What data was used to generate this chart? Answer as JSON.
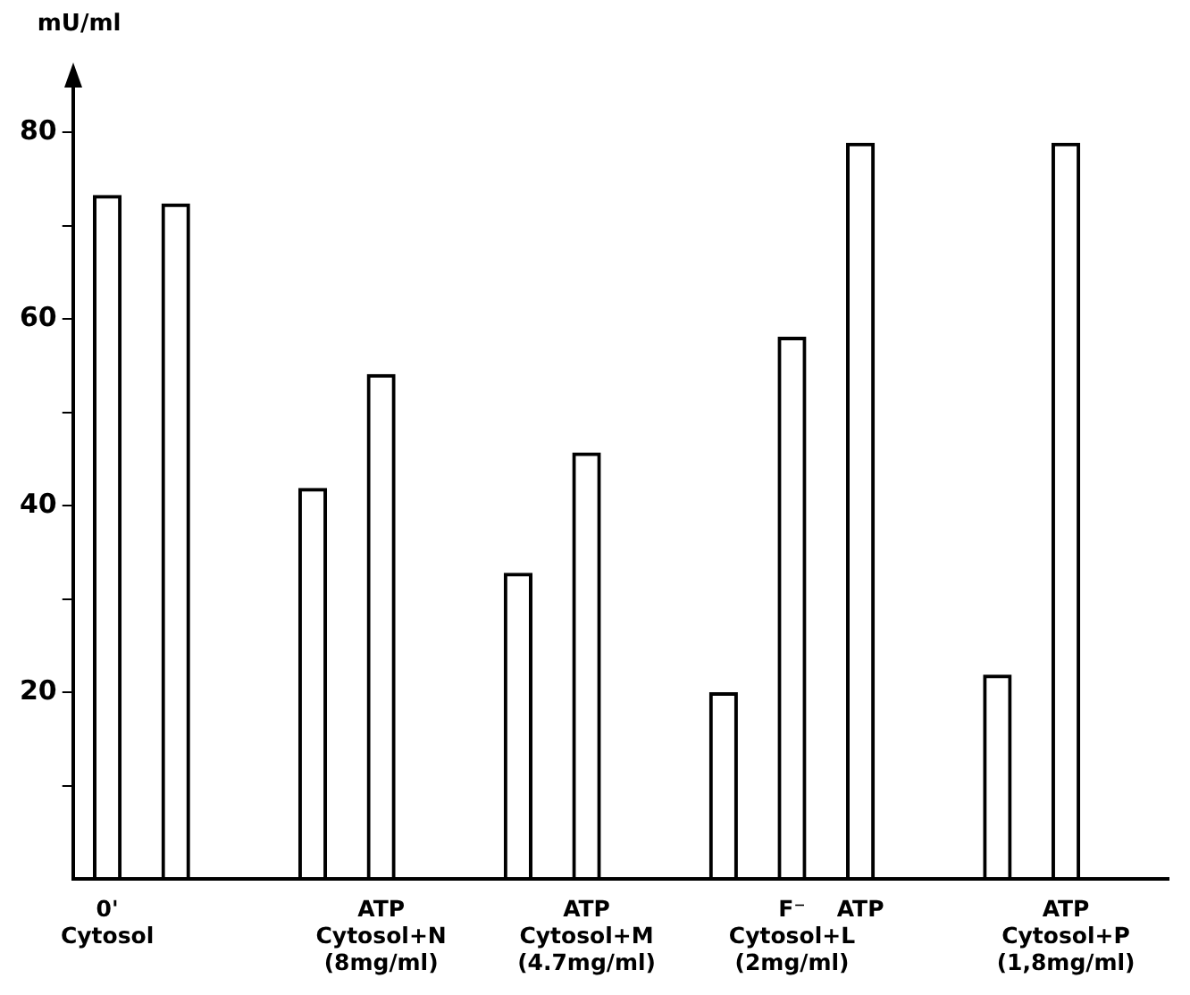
{
  "chart_data": {
    "type": "bar",
    "ylabel": "mU/ml",
    "categories": [
      "0'\nCytosol",
      null,
      null,
      null,
      "ATP\nCytosol+N\n(8mg/ml)",
      null,
      null,
      "ATP\nCytosol+M\n(4.7mg/ml)",
      null,
      null,
      "F⁻\nCytosol+L\n(2mg/ml)",
      "ATP",
      null,
      null,
      "ATP\nCytosol+P\n(1,8mg/ml)",
      null
    ],
    "values": [
      73.3,
      72.4,
      null,
      41.9,
      54.1,
      null,
      32.8,
      45.7,
      null,
      20.0,
      58.1,
      78.9,
      null,
      21.9,
      78.9,
      null
    ],
    "color": "#000000",
    "ylim": [
      0,
      85
    ],
    "yticks": [
      {
        "value": 10,
        "label": null
      },
      20,
      {
        "value": 30,
        "label": null
      },
      40,
      {
        "value": 50,
        "label": null
      },
      60,
      {
        "value": 70,
        "label": null
      },
      80
    ],
    "grid": false,
    "legend": false
  }
}
